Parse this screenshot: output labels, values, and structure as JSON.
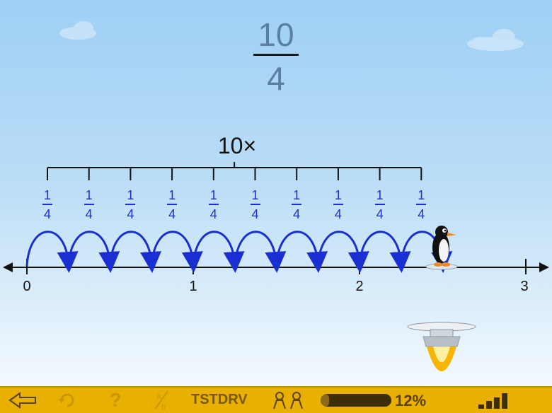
{
  "question": {
    "numerator": "10",
    "denominator": "4"
  },
  "multiplier_label": "10×",
  "jump_fraction": {
    "numerator": "1",
    "denominator": "4"
  },
  "jump_count": 10,
  "number_line": {
    "ticks": [
      "0",
      "1",
      "2",
      "3"
    ]
  },
  "footer": {
    "test_code": "TSTDRV",
    "progress_percent": "12%",
    "progress_value": 0.12,
    "icons": [
      "back-arrow-icon",
      "refresh-icon",
      "help-icon",
      "fraction-tool-icon",
      "players-icon",
      "signal-bars-icon"
    ]
  },
  "colors": {
    "jump_arrow": "#1a2fd1",
    "footer_bg": "#e8b000",
    "fraction_text": "#5a7fa3"
  }
}
